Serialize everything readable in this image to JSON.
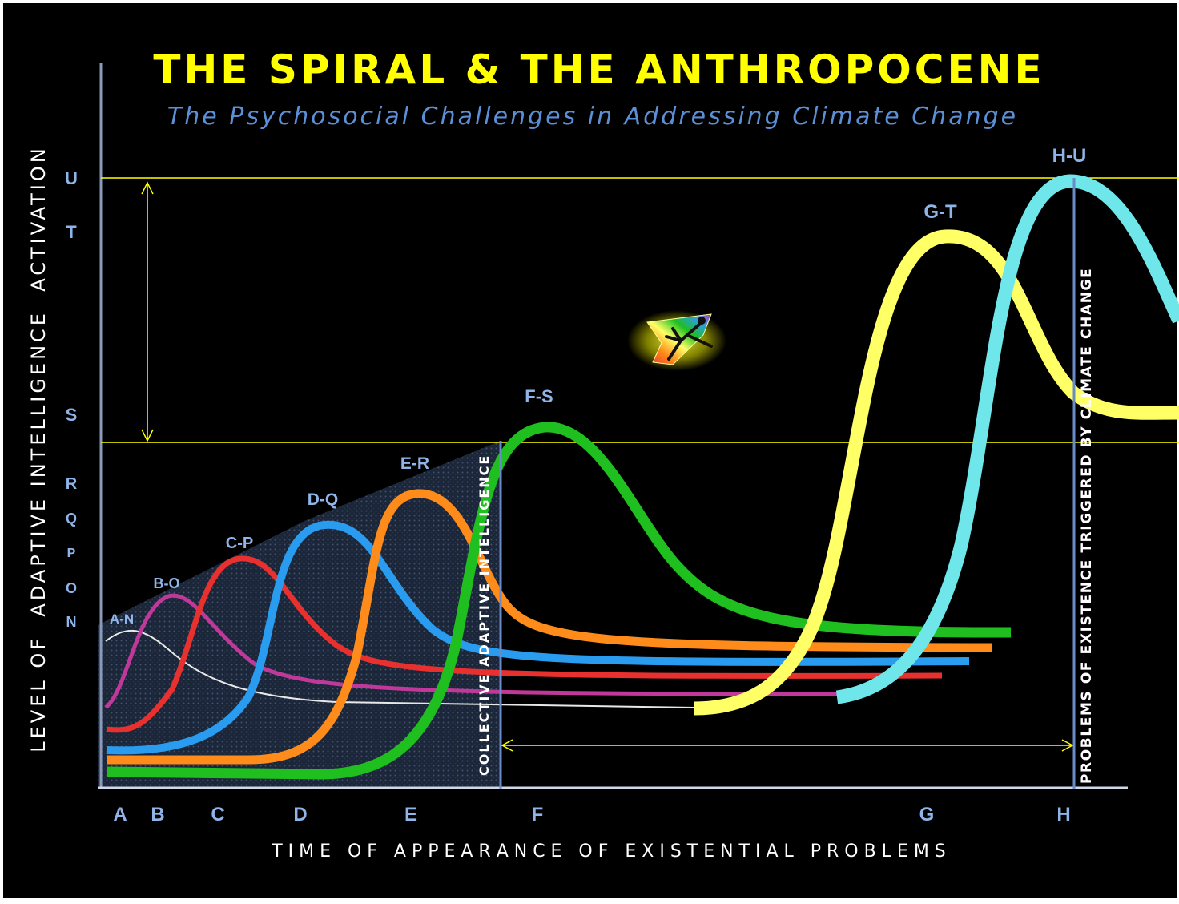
{
  "title": "THE SPIRAL & THE ANTHROPOCENE",
  "subtitle": "The Psychosocial Challenges in Addressing Climate Change",
  "y_axis_title": "LEVEL OF  ADAPTIVE INTELLIGENCE  ACTIVATION",
  "x_axis_title": "T I M E   O F   A P P E A R A N C E   O F   E X I S T E N T I A L   P R O B L E M S",
  "y_levels": [
    "U",
    "T",
    "S",
    "R",
    "Q",
    "P",
    "O",
    "N"
  ],
  "x_levels": [
    "A",
    "B",
    "C",
    "D",
    "E",
    "F",
    "G",
    "H"
  ],
  "curve_labels": [
    "A-N",
    "B-O",
    "C-P",
    "D-Q",
    "E-R",
    "F-S",
    "G-T",
    "H-U"
  ],
  "vertical_label_left": "COLLECTIVE ADAPTIVE INTELLIGENCE",
  "vertical_label_right": "PROBLEMS OF EXISTENCE TRIGGERED BY CLIMATE CHANGE",
  "colors": {
    "title": "#ffff00",
    "subtitle": "#5b8fd6",
    "axis_letters": "#8fb4e8",
    "guide_lines": "#ffff00",
    "A-N": "#e8e8e8",
    "B-O": "#c0399a",
    "C-P": "#e8302f",
    "D-Q": "#2a9cf0",
    "E-R": "#ff8c1a",
    "F-S": "#1fbf1f",
    "G-T": "#ffff66",
    "H-U": "#6ee6ea"
  },
  "icon": "rainbow-leaping-figure-icon"
}
